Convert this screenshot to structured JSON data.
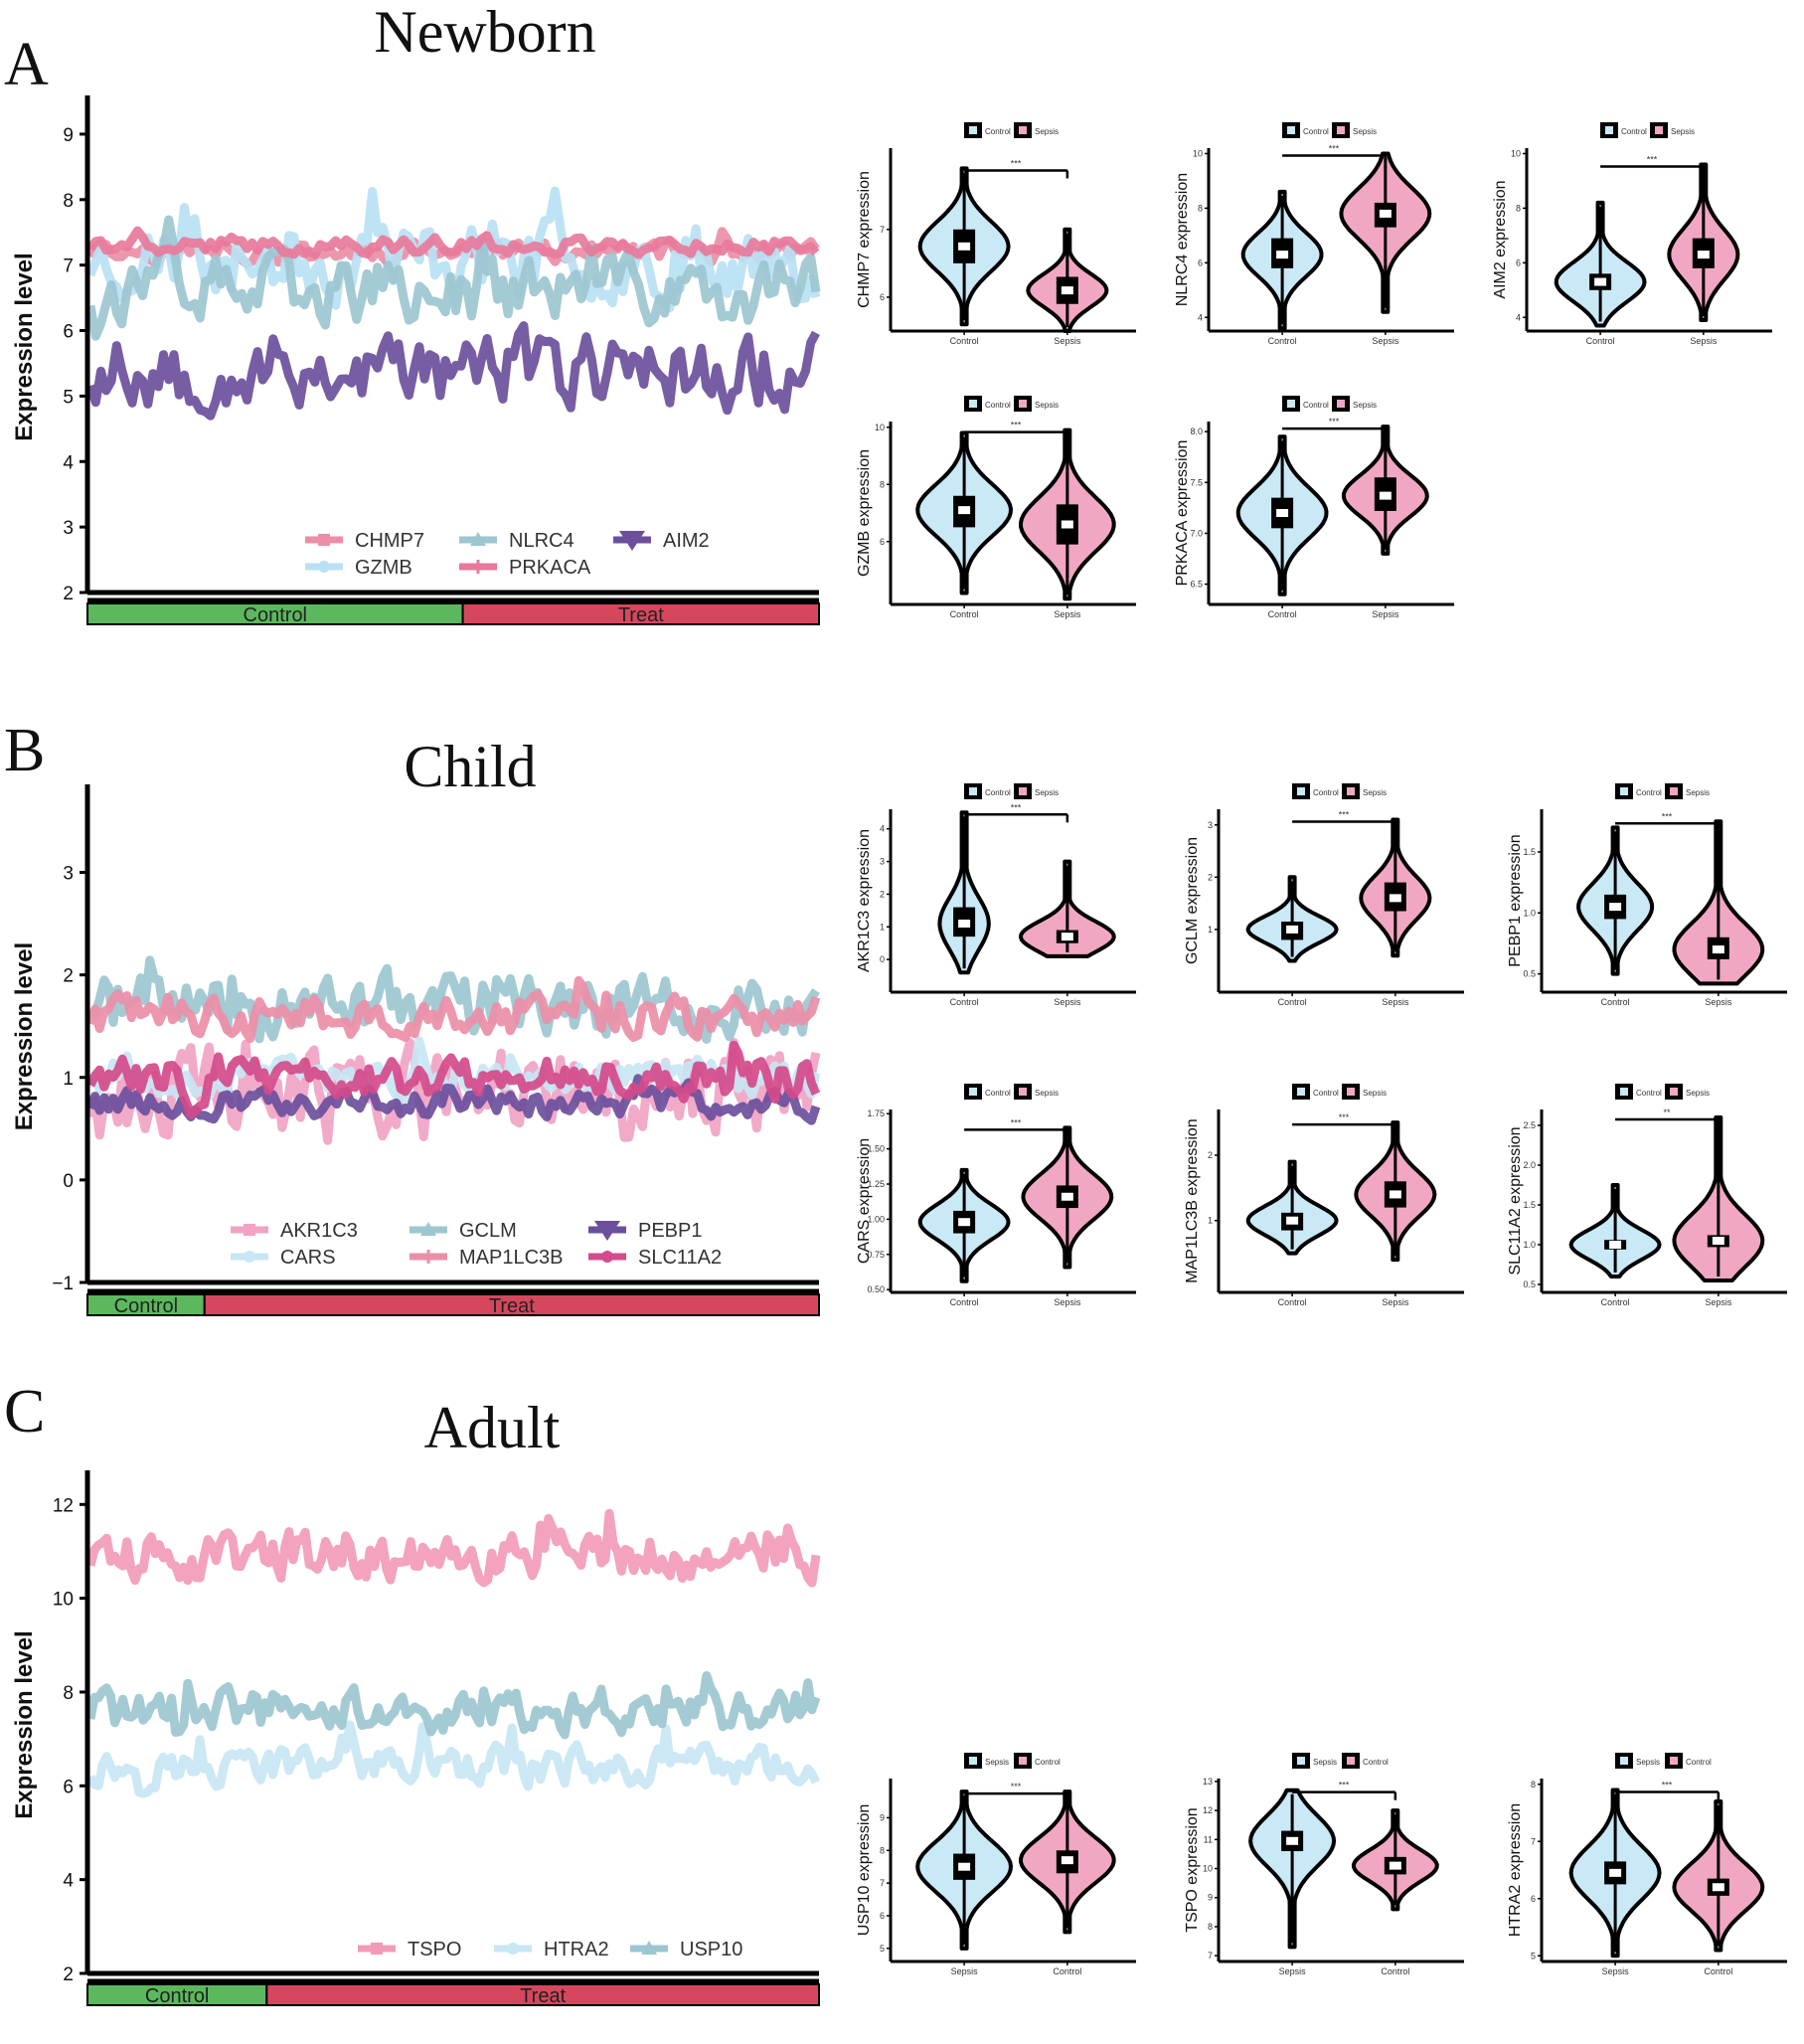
{
  "figure": {
    "panels": [
      {
        "letter": "A",
        "title": "Newborn"
      },
      {
        "letter": "B",
        "title": "Child"
      },
      {
        "letter": "C",
        "title": "Adult"
      }
    ]
  },
  "chart_data": [
    {
      "type": "line",
      "panel": "A",
      "title": "Newborn",
      "ylabel": "Expression level",
      "ylim": [
        2,
        9.5
      ],
      "yticks": [
        2,
        3,
        4,
        5,
        6,
        7,
        8,
        9
      ],
      "group_bar": [
        {
          "label": "Control",
          "fraction": 0.513,
          "color": "#5cb85c"
        },
        {
          "label": "Treat",
          "fraction": 0.487,
          "color": "#d6475e"
        }
      ],
      "n_samples": 140,
      "series": [
        {
          "name": "CHMP7",
          "color": "#ec8ea7",
          "marker": "square",
          "mean": 7.2,
          "spread": 0.25,
          "seed": 11
        },
        {
          "name": "GZMB",
          "color": "#b9e1f3",
          "marker": "circle",
          "mean": 7.1,
          "spread": 0.9,
          "seed": 23
        },
        {
          "name": "NLRC4",
          "color": "#9cc6d0",
          "marker": "triangle",
          "mean": 6.6,
          "spread": 0.8,
          "seed": 37
        },
        {
          "name": "PRKACA",
          "color": "#e8799b",
          "marker": "plus",
          "mean": 7.3,
          "spread": 0.2,
          "seed": 41
        },
        {
          "name": "AIM2",
          "color": "#6b4f9c",
          "marker": "triangle-down",
          "mean": 5.4,
          "spread": 0.9,
          "seed": 53
        }
      ],
      "legend": {
        "rows": [
          [
            "CHMP7",
            "NLRC4",
            "AIM2"
          ],
          [
            "GZMB",
            "PRKACA"
          ]
        ]
      }
    },
    {
      "type": "line",
      "panel": "B",
      "title": "Child",
      "ylabel": "Expression level",
      "ylim": [
        -1,
        3.8
      ],
      "yticks": [
        -1,
        0,
        1,
        2,
        3
      ],
      "group_bar": [
        {
          "label": "Control",
          "fraction": 0.16,
          "color": "#5cb85c"
        },
        {
          "label": "Treat",
          "fraction": 0.84,
          "color": "#d6475e"
        }
      ],
      "n_samples": 160,
      "series": [
        {
          "name": "AKR1C3",
          "color": "#f1a3c4",
          "marker": "square",
          "mean": 0.8,
          "spread": 0.7,
          "seed": 61
        },
        {
          "name": "CARS",
          "color": "#c8e6f4",
          "marker": "circle",
          "mean": 1.0,
          "spread": 0.25,
          "seed": 67
        },
        {
          "name": "GCLM",
          "color": "#9cc6d0",
          "marker": "triangle",
          "mean": 1.7,
          "spread": 0.45,
          "seed": 71
        },
        {
          "name": "MAP1LC3B",
          "color": "#ec8ea7",
          "marker": "plus",
          "mean": 1.6,
          "spread": 0.3,
          "seed": 73
        },
        {
          "name": "PEBP1",
          "color": "#6b4f9c",
          "marker": "triangle-down",
          "mean": 0.75,
          "spread": 0.2,
          "seed": 79
        },
        {
          "name": "SLC11A2",
          "color": "#d44a8a",
          "marker": "circle",
          "mean": 1.0,
          "spread": 0.3,
          "seed": 83
        }
      ],
      "legend": {
        "rows": [
          [
            "AKR1C3",
            "GCLM",
            "PEBP1"
          ],
          [
            "CARS",
            "MAP1LC3B",
            "SLC11A2"
          ]
        ]
      }
    },
    {
      "type": "line",
      "panel": "C",
      "title": "Adult",
      "ylabel": "Expression level",
      "ylim": [
        2,
        12.6
      ],
      "yticks": [
        2,
        4,
        6,
        8,
        10,
        12
      ],
      "group_bar": [
        {
          "label": "Control",
          "fraction": 0.245,
          "color": "#5cb85c"
        },
        {
          "label": "Treat",
          "fraction": 0.755,
          "color": "#d6475e"
        }
      ],
      "n_samples": 180,
      "series": [
        {
          "name": "TSPO",
          "color": "#f29bb8",
          "marker": "square",
          "mean": 10.9,
          "spread": 0.8,
          "seed": 89
        },
        {
          "name": "HTRA2",
          "color": "#c8e6f4",
          "marker": "circle",
          "mean": 6.4,
          "spread": 0.6,
          "seed": 97
        },
        {
          "name": "USP10",
          "color": "#9cc6d0",
          "marker": "triangle",
          "mean": 7.6,
          "spread": 0.7,
          "seed": 101
        }
      ],
      "legend": {
        "rows": [
          [
            "TSPO",
            "HTRA2",
            "USP10"
          ]
        ]
      }
    },
    {
      "type": "violin",
      "panel": "A",
      "plots": [
        {
          "gene": "CHMP7",
          "ylabel": "CHMP7 expression",
          "ylim": [
            5.5,
            8.2
          ],
          "yticks": [
            "6",
            "7"
          ],
          "ytick_values": [
            6,
            7
          ],
          "groups": [
            "Control",
            "Sepsis"
          ],
          "legend": [
            "Control",
            "Sepsis"
          ],
          "sig": "***",
          "medians": [
            6.75,
            6.1
          ],
          "q1": [
            6.5,
            5.9
          ],
          "q3": [
            7.0,
            6.3
          ],
          "min": [
            5.6,
            5.5
          ],
          "max": [
            7.9,
            7.0
          ],
          "widths": [
            0.9,
            0.8
          ]
        },
        {
          "gene": "NLRC4",
          "ylabel": "NLRC4 expression",
          "ylim": [
            3.5,
            10.2
          ],
          "yticks": [
            "4",
            "6",
            "8",
            "10"
          ],
          "ytick_values": [
            4,
            6,
            8,
            10
          ],
          "groups": [
            "Control",
            "Sepsis"
          ],
          "legend": [
            "Control",
            "Sepsis"
          ],
          "sig": "***",
          "medians": [
            6.3,
            7.8
          ],
          "q1": [
            5.8,
            7.3
          ],
          "q3": [
            6.9,
            8.2
          ],
          "min": [
            3.6,
            4.2
          ],
          "max": [
            8.6,
            10.0
          ],
          "widths": [
            0.8,
            0.9
          ]
        },
        {
          "gene": "AIM2",
          "ylabel": "AIM2 expression",
          "ylim": [
            3.5,
            10.2
          ],
          "yticks": [
            "4",
            "6",
            "8",
            "10"
          ],
          "ytick_values": [
            4,
            6,
            8,
            10
          ],
          "groups": [
            "Control",
            "Sepsis"
          ],
          "legend": [
            "Control",
            "Sepsis"
          ],
          "sig": "***",
          "medians": [
            5.3,
            6.3
          ],
          "q1": [
            5.0,
            5.8
          ],
          "q3": [
            5.6,
            6.9
          ],
          "min": [
            3.7,
            3.9
          ],
          "max": [
            8.2,
            9.6
          ],
          "widths": [
            0.9,
            0.7
          ]
        },
        {
          "gene": "GZMB",
          "ylabel": "GZMB expression",
          "ylim": [
            3.8,
            10.2
          ],
          "yticks": [
            "6",
            "8",
            "10"
          ],
          "ytick_values": [
            6,
            8,
            10
          ],
          "groups": [
            "Control",
            "Sepsis"
          ],
          "legend": [
            "Control",
            "Sepsis"
          ],
          "sig": "***",
          "medians": [
            7.1,
            6.6
          ],
          "q1": [
            6.5,
            5.9
          ],
          "q3": [
            7.6,
            7.3
          ],
          "min": [
            4.2,
            4.0
          ],
          "max": [
            9.8,
            9.9
          ],
          "widths": [
            0.95,
            0.95
          ]
        },
        {
          "gene": "PRKACA",
          "ylabel": "PRKACA expression",
          "ylim": [
            6.3,
            8.1
          ],
          "yticks": [
            "6.5",
            "7.0",
            "7.5",
            "8.0"
          ],
          "ytick_values": [
            6.5,
            7.0,
            7.5,
            8.0
          ],
          "groups": [
            "Control",
            "Sepsis"
          ],
          "legend": [
            "Control",
            "Sepsis"
          ],
          "sig": "***",
          "medians": [
            7.2,
            7.37
          ],
          "q1": [
            7.05,
            7.22
          ],
          "q3": [
            7.35,
            7.55
          ],
          "min": [
            6.4,
            6.8
          ],
          "max": [
            7.95,
            8.05
          ],
          "widths": [
            0.9,
            0.85
          ]
        }
      ]
    },
    {
      "type": "violin",
      "panel": "B",
      "plots": [
        {
          "gene": "AKR1C3",
          "ylabel": "AKR1C3 expression",
          "ylim": [
            -1,
            4.6
          ],
          "yticks": [
            "0",
            "1",
            "2",
            "3",
            "4"
          ],
          "ytick_values": [
            0,
            1,
            2,
            3,
            4
          ],
          "groups": [
            "Control",
            "Sepsis"
          ],
          "legend": [
            "Control",
            "Sepsis"
          ],
          "sig": "***",
          "medians": [
            1.1,
            0.7
          ],
          "q1": [
            0.7,
            0.5
          ],
          "q3": [
            1.6,
            0.9
          ],
          "min": [
            -0.4,
            0.1
          ],
          "max": [
            4.5,
            3.0
          ],
          "widths": [
            0.5,
            0.95
          ]
        },
        {
          "gene": "GCLM",
          "ylabel": "GCLM expression",
          "ylim": [
            -0.2,
            3.3
          ],
          "yticks": [
            "1",
            "2",
            "3"
          ],
          "ytick_values": [
            1,
            2,
            3
          ],
          "groups": [
            "Control",
            "Sepsis"
          ],
          "legend": [
            "Control",
            "Sepsis"
          ],
          "sig": "***",
          "medians": [
            1.0,
            1.6
          ],
          "q1": [
            0.8,
            1.35
          ],
          "q3": [
            1.15,
            1.9
          ],
          "min": [
            0.4,
            0.5
          ],
          "max": [
            2.0,
            3.1
          ],
          "widths": [
            0.9,
            0.7
          ]
        },
        {
          "gene": "PEBP1",
          "ylabel": "PEBP1 expression",
          "ylim": [
            0.35,
            1.85
          ],
          "yticks": [
            "0.5",
            "1.0",
            "1.5"
          ],
          "ytick_values": [
            0.5,
            1.0,
            1.5
          ],
          "groups": [
            "Control",
            "Sepsis"
          ],
          "legend": [
            "Control",
            "Sepsis"
          ],
          "sig": "***",
          "medians": [
            1.05,
            0.7
          ],
          "q1": [
            0.95,
            0.62
          ],
          "q3": [
            1.15,
            0.8
          ],
          "min": [
            0.5,
            0.42
          ],
          "max": [
            1.7,
            1.75
          ],
          "widths": [
            0.75,
            0.9
          ]
        },
        {
          "gene": "CARS",
          "ylabel": "CARS expression",
          "ylim": [
            0.48,
            1.78
          ],
          "yticks": [
            "0.50",
            "0.75",
            "1.00",
            "1.25",
            "1.50",
            "1.75"
          ],
          "ytick_values": [
            0.5,
            0.75,
            1.0,
            1.25,
            1.5,
            1.75
          ],
          "groups": [
            "Control",
            "Sepsis"
          ],
          "legend": [
            "Control",
            "Sepsis"
          ],
          "sig": "***",
          "medians": [
            0.98,
            1.16
          ],
          "q1": [
            0.9,
            1.08
          ],
          "q3": [
            1.06,
            1.24
          ],
          "min": [
            0.56,
            0.66
          ],
          "max": [
            1.35,
            1.65
          ],
          "widths": [
            0.9,
            0.9
          ]
        },
        {
          "gene": "MAP1LC3B",
          "ylabel": "MAP1LC3B expression",
          "ylim": [
            -0.1,
            2.7
          ],
          "yticks": [
            "1",
            "2"
          ],
          "ytick_values": [
            1,
            2
          ],
          "groups": [
            "Control",
            "Sepsis"
          ],
          "legend": [
            "Control",
            "Sepsis"
          ],
          "sig": "***",
          "medians": [
            1.0,
            1.4
          ],
          "q1": [
            0.85,
            1.2
          ],
          "q3": [
            1.12,
            1.6
          ],
          "min": [
            0.5,
            0.4
          ],
          "max": [
            1.9,
            2.5
          ],
          "widths": [
            0.9,
            0.8
          ]
        },
        {
          "gene": "SLC11A2",
          "ylabel": "SLC11A2 expression",
          "ylim": [
            0.4,
            2.7
          ],
          "yticks": [
            "0.5",
            "1.0",
            "1.5",
            "2.0",
            "2.5"
          ],
          "ytick_values": [
            0.5,
            1.0,
            1.5,
            2.0,
            2.5
          ],
          "groups": [
            "Control",
            "Sepsis"
          ],
          "legend": [
            "Control",
            "Sepsis"
          ],
          "sig": "**",
          "medians": [
            1.0,
            1.05
          ],
          "q1": [
            0.94,
            0.97
          ],
          "q3": [
            1.06,
            1.12
          ],
          "min": [
            0.6,
            0.55
          ],
          "max": [
            1.75,
            2.6
          ],
          "widths": [
            0.9,
            0.9
          ]
        }
      ]
    },
    {
      "type": "violin",
      "panel": "C",
      "plots": [
        {
          "gene": "USP10",
          "ylabel": "USP10 expression",
          "ylim": [
            4.6,
            10.2
          ],
          "yticks": [
            "5",
            "6",
            "7",
            "8",
            "9"
          ],
          "ytick_values": [
            5,
            6,
            7,
            8,
            9
          ],
          "groups": [
            "Sepsis",
            "Control"
          ],
          "legend": [
            "Sepsis",
            "Control"
          ],
          "sig": "***",
          "medians": [
            7.5,
            7.7
          ],
          "q1": [
            7.1,
            7.3
          ],
          "q3": [
            7.9,
            8.0
          ],
          "min": [
            5.0,
            5.5
          ],
          "max": [
            9.8,
            9.8
          ],
          "widths": [
            0.95,
            0.95
          ]
        },
        {
          "gene": "TSPO",
          "ylabel": "TSPO expression",
          "ylim": [
            6.8,
            13.1
          ],
          "yticks": [
            "7",
            "8",
            "9",
            "10",
            "11",
            "12",
            "13"
          ],
          "ytick_values": [
            7,
            8,
            9,
            10,
            11,
            12,
            13
          ],
          "groups": [
            "Sepsis",
            "Control"
          ],
          "legend": [
            "Sepsis",
            "Control"
          ],
          "sig": "***",
          "medians": [
            10.95,
            10.1
          ],
          "q1": [
            10.6,
            9.8
          ],
          "q3": [
            11.3,
            10.4
          ],
          "min": [
            7.3,
            8.6
          ],
          "max": [
            12.7,
            12.0
          ],
          "widths": [
            0.85,
            0.85
          ]
        },
        {
          "gene": "HTRA2",
          "ylabel": "HTRA2 expression",
          "ylim": [
            4.9,
            8.1
          ],
          "yticks": [
            "5",
            "6",
            "7",
            "8"
          ],
          "ytick_values": [
            5,
            6,
            7,
            8
          ],
          "groups": [
            "Sepsis",
            "Control"
          ],
          "legend": [
            "Sepsis",
            "Control"
          ],
          "sig": "***",
          "medians": [
            6.45,
            6.2
          ],
          "q1": [
            6.25,
            6.05
          ],
          "q3": [
            6.65,
            6.35
          ],
          "min": [
            5.0,
            5.1
          ],
          "max": [
            7.9,
            7.7
          ],
          "widths": [
            0.9,
            0.9
          ]
        }
      ]
    }
  ]
}
